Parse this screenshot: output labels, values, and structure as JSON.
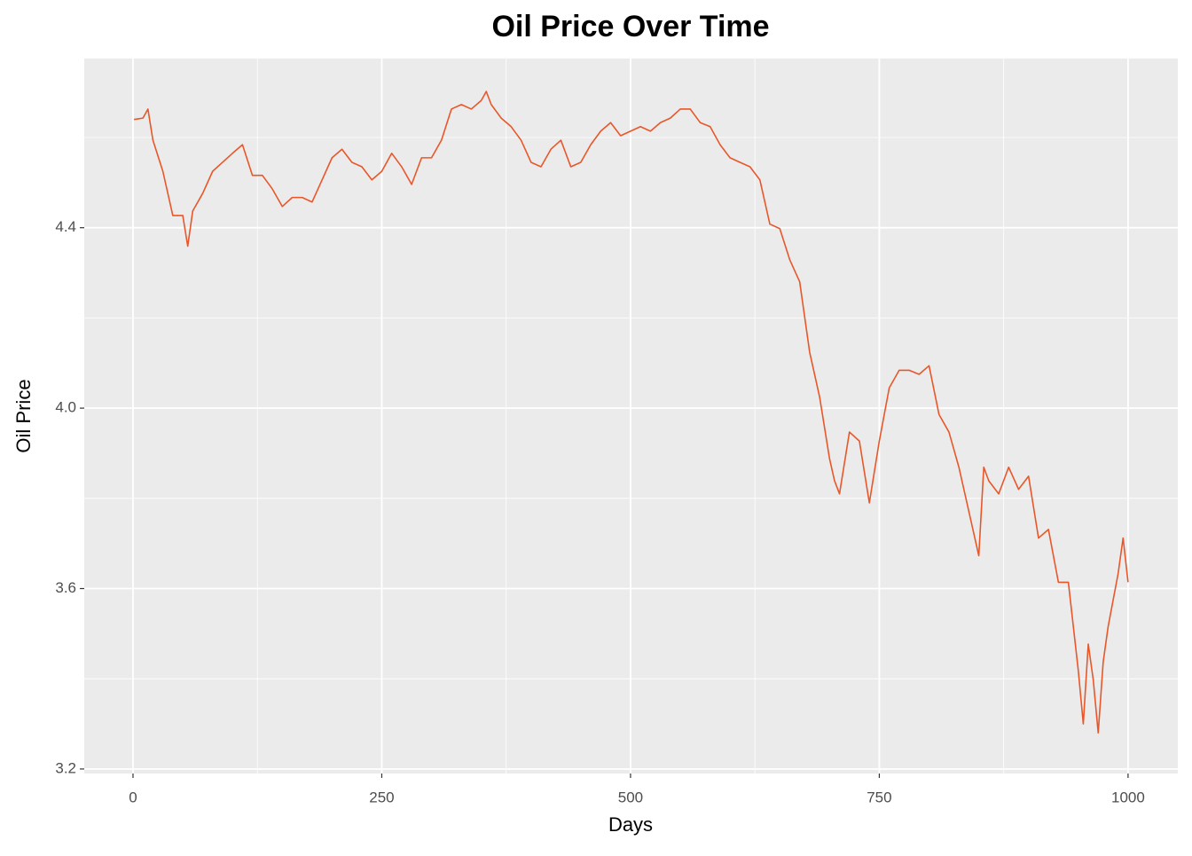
{
  "chart_data": {
    "type": "line",
    "title": "Oil Price Over Time",
    "x_label": "Days",
    "y_label": "Oil Price",
    "color": "#e8572a",
    "grid": true,
    "xlim": [
      -49,
      1050
    ],
    "ylim": [
      3.19,
      4.775
    ],
    "xticks": [
      0,
      250,
      500,
      750,
      1000
    ],
    "yticks": [
      {
        "value": 3.2,
        "label": "3.2"
      },
      {
        "value": 3.6,
        "label": "3.6"
      },
      {
        "value": 4.0,
        "label": "4.0"
      },
      {
        "value": 4.4,
        "label": "4.4"
      }
    ],
    "minor_xticks": [
      125,
      375,
      625,
      875
    ],
    "minor_yticks": [
      3.4,
      3.8,
      4.2,
      4.6
    ],
    "x": [
      1,
      10,
      15,
      20,
      30,
      40,
      50,
      55,
      60,
      70,
      80,
      90,
      100,
      110,
      120,
      130,
      140,
      150,
      160,
      170,
      180,
      190,
      200,
      210,
      220,
      230,
      240,
      250,
      260,
      270,
      280,
      290,
      300,
      310,
      320,
      330,
      340,
      350,
      355,
      360,
      370,
      380,
      390,
      400,
      410,
      420,
      430,
      440,
      450,
      460,
      470,
      480,
      490,
      500,
      510,
      520,
      530,
      540,
      550,
      560,
      570,
      580,
      590,
      600,
      610,
      620,
      630,
      640,
      650,
      660,
      670,
      675,
      680,
      690,
      700,
      705,
      710,
      720,
      730,
      740,
      750,
      760,
      770,
      780,
      790,
      800,
      810,
      820,
      830,
      840,
      850,
      855,
      860,
      870,
      880,
      890,
      900,
      910,
      920,
      930,
      940,
      950,
      955,
      960,
      965,
      970,
      975,
      980,
      990,
      995,
      1000
    ],
    "values": [
      4.64,
      4.643,
      4.663,
      4.594,
      4.525,
      4.427,
      4.427,
      4.359,
      4.437,
      4.476,
      4.525,
      4.545,
      4.565,
      4.584,
      4.516,
      4.516,
      4.486,
      4.447,
      4.467,
      4.467,
      4.457,
      4.506,
      4.555,
      4.574,
      4.545,
      4.535,
      4.506,
      4.525,
      4.565,
      4.535,
      4.496,
      4.555,
      4.555,
      4.594,
      4.663,
      4.673,
      4.663,
      4.682,
      4.702,
      4.673,
      4.643,
      4.624,
      4.594,
      4.545,
      4.535,
      4.574,
      4.594,
      4.535,
      4.545,
      4.584,
      4.614,
      4.633,
      4.604,
      4.614,
      4.624,
      4.614,
      4.633,
      4.643,
      4.663,
      4.663,
      4.633,
      4.624,
      4.584,
      4.555,
      4.545,
      4.535,
      4.506,
      4.408,
      4.398,
      4.329,
      4.28,
      4.202,
      4.124,
      4.025,
      3.888,
      3.839,
      3.81,
      3.947,
      3.927,
      3.79,
      3.927,
      4.045,
      4.084,
      4.084,
      4.075,
      4.094,
      3.986,
      3.947,
      3.869,
      3.771,
      3.673,
      3.869,
      3.839,
      3.81,
      3.869,
      3.82,
      3.849,
      3.712,
      3.731,
      3.614,
      3.614,
      3.418,
      3.3,
      3.477,
      3.398,
      3.28,
      3.437,
      3.516,
      3.633,
      3.712,
      3.614
    ]
  }
}
